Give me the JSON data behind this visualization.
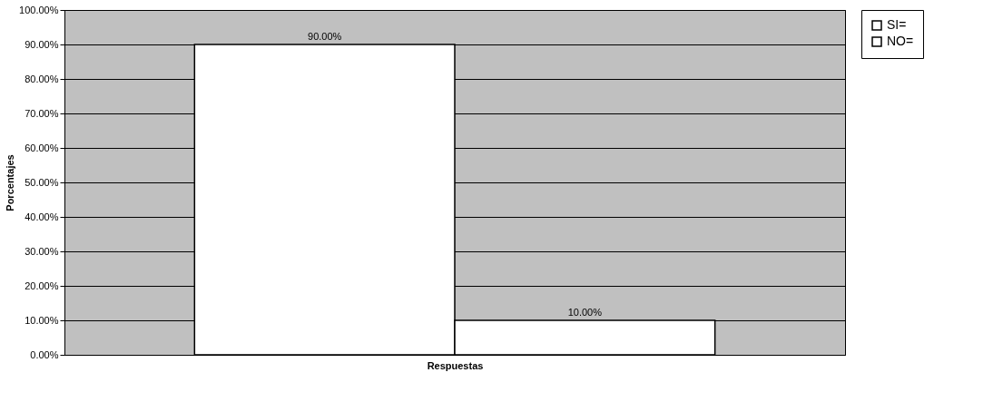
{
  "chart_data": {
    "type": "bar",
    "xlabel": "Respuestas",
    "ylabel": "Porcentajes",
    "categories": [
      null
    ],
    "series": [
      {
        "name": "SI=",
        "color": "#ffffff",
        "values": [
          90
        ],
        "value_labels": [
          "90.00%"
        ]
      },
      {
        "name": "NO=",
        "color": "#ffffff",
        "values": [
          10
        ],
        "value_labels": [
          "10.00%"
        ]
      }
    ],
    "ylim": [
      0,
      100
    ],
    "yticks": [
      {
        "value": 0,
        "label": "0.00%"
      },
      {
        "value": 10,
        "label": "10.00%"
      },
      {
        "value": 20,
        "label": "20.00%"
      },
      {
        "value": 30,
        "label": "30.00%"
      },
      {
        "value": 40,
        "label": "40.00%"
      },
      {
        "value": 50,
        "label": "50.00%"
      },
      {
        "value": 60,
        "label": "60.00%"
      },
      {
        "value": 70,
        "label": "70.00%"
      },
      {
        "value": 80,
        "label": "80.00%"
      },
      {
        "value": 90,
        "label": "90.00%"
      },
      {
        "value": 100,
        "label": "100.00%"
      }
    ],
    "grid": "y",
    "legend": "right"
  }
}
